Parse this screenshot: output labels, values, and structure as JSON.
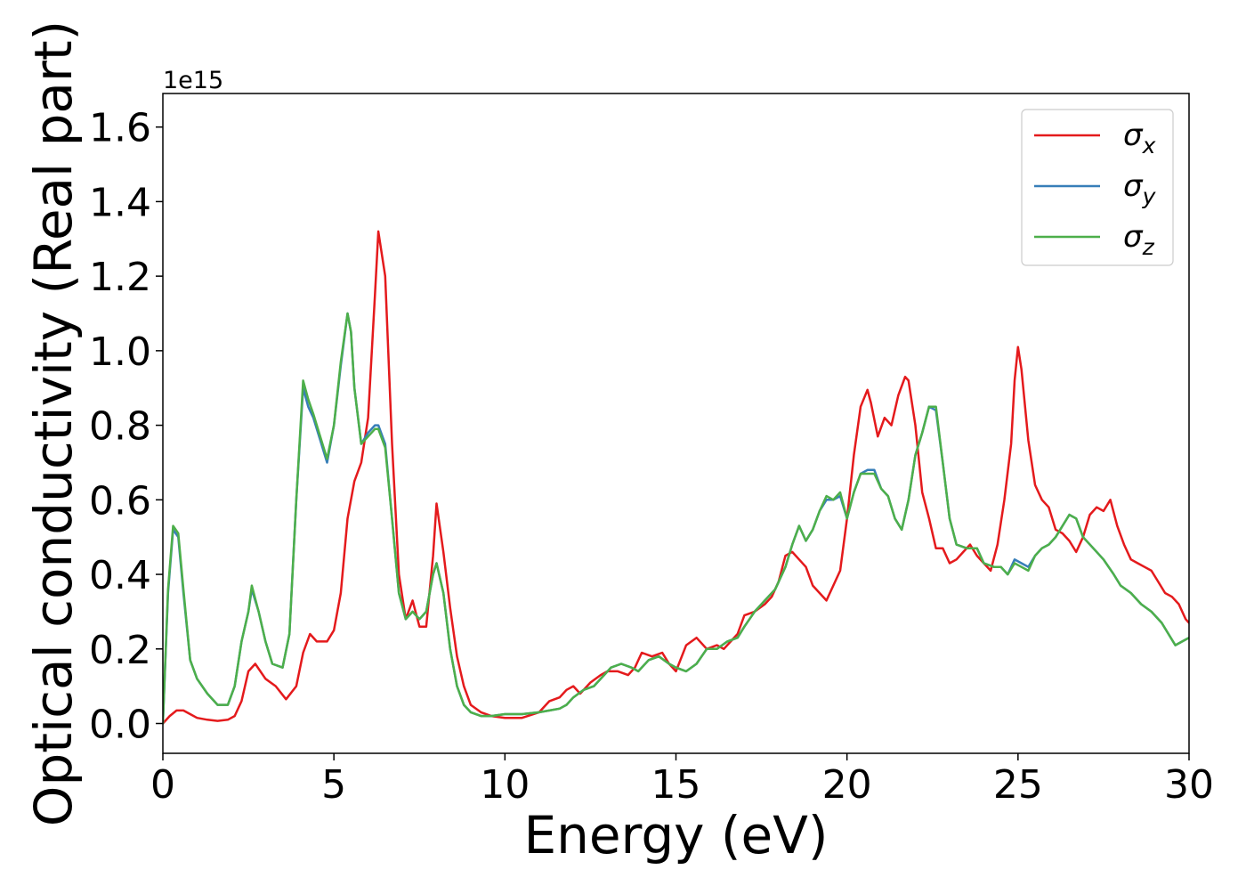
{
  "chart_data": {
    "type": "line",
    "title": "",
    "xlabel": "Energy (eV)",
    "ylabel": "Optical conductivity (Real part)",
    "offset_text": "1e15",
    "xlim": [
      0,
      30
    ],
    "ylim": [
      -0.08,
      1.69
    ],
    "x_ticks": [
      0,
      5,
      10,
      15,
      20,
      25,
      30
    ],
    "x_tick_labels": [
      "0",
      "5",
      "10",
      "15",
      "20",
      "25",
      "30"
    ],
    "y_ticks": [
      0.0,
      0.2,
      0.4,
      0.6,
      0.8,
      1.0,
      1.2,
      1.4,
      1.6
    ],
    "y_tick_labels": [
      "0.0",
      "0.2",
      "0.4",
      "0.6",
      "0.8",
      "1.0",
      "1.2",
      "1.4",
      "1.6"
    ],
    "grid": false,
    "legend_position": "top-right",
    "series": [
      {
        "name": "σx",
        "legend_base": "σ",
        "legend_sub": "x",
        "color": "#e41a1c",
        "x": [
          0,
          0.2,
          0.4,
          0.6,
          0.8,
          1.0,
          1.3,
          1.6,
          1.9,
          2.1,
          2.3,
          2.5,
          2.7,
          3.0,
          3.3,
          3.6,
          3.9,
          4.1,
          4.3,
          4.5,
          4.8,
          5.0,
          5.2,
          5.4,
          5.6,
          5.8,
          6.0,
          6.2,
          6.3,
          6.5,
          6.7,
          6.9,
          7.1,
          7.3,
          7.5,
          7.7,
          7.9,
          8.0,
          8.2,
          8.4,
          8.6,
          8.8,
          9.0,
          9.3,
          9.6,
          10.0,
          10.5,
          11.0,
          11.3,
          11.6,
          11.8,
          12.0,
          12.2,
          12.5,
          12.8,
          13.0,
          13.3,
          13.6,
          13.8,
          14.0,
          14.3,
          14.6,
          14.8,
          15.0,
          15.3,
          15.6,
          15.9,
          16.2,
          16.4,
          16.6,
          16.8,
          17.0,
          17.3,
          17.6,
          17.8,
          18.0,
          18.2,
          18.4,
          18.6,
          18.8,
          19.0,
          19.2,
          19.4,
          19.6,
          19.8,
          20.0,
          20.2,
          20.4,
          20.6,
          20.7,
          20.9,
          21.1,
          21.3,
          21.5,
          21.7,
          21.8,
          22.0,
          22.2,
          22.4,
          22.6,
          22.8,
          23.0,
          23.2,
          23.4,
          23.6,
          23.8,
          24.0,
          24.2,
          24.4,
          24.6,
          24.8,
          24.9,
          25.0,
          25.1,
          25.3,
          25.5,
          25.7,
          25.9,
          26.1,
          26.3,
          26.5,
          26.7,
          26.9,
          27.1,
          27.3,
          27.5,
          27.7,
          27.9,
          28.1,
          28.3,
          28.5,
          28.7,
          28.9,
          29.1,
          29.3,
          29.5,
          29.7,
          29.9,
          30.0
        ],
        "y": [
          0.0,
          0.02,
          0.035,
          0.035,
          0.025,
          0.015,
          0.01,
          0.007,
          0.01,
          0.02,
          0.06,
          0.14,
          0.16,
          0.12,
          0.1,
          0.065,
          0.1,
          0.19,
          0.24,
          0.22,
          0.22,
          0.25,
          0.35,
          0.55,
          0.65,
          0.7,
          0.82,
          1.15,
          1.32,
          1.2,
          0.75,
          0.4,
          0.28,
          0.33,
          0.26,
          0.26,
          0.45,
          0.59,
          0.46,
          0.31,
          0.18,
          0.1,
          0.05,
          0.03,
          0.02,
          0.015,
          0.015,
          0.03,
          0.06,
          0.07,
          0.09,
          0.1,
          0.08,
          0.11,
          0.13,
          0.14,
          0.14,
          0.13,
          0.15,
          0.19,
          0.18,
          0.19,
          0.16,
          0.14,
          0.21,
          0.23,
          0.2,
          0.21,
          0.2,
          0.22,
          0.24,
          0.29,
          0.3,
          0.32,
          0.34,
          0.38,
          0.45,
          0.46,
          0.44,
          0.42,
          0.37,
          0.35,
          0.33,
          0.37,
          0.41,
          0.55,
          0.72,
          0.85,
          0.895,
          0.86,
          0.77,
          0.82,
          0.8,
          0.88,
          0.93,
          0.92,
          0.8,
          0.62,
          0.55,
          0.47,
          0.47,
          0.43,
          0.44,
          0.46,
          0.48,
          0.45,
          0.43,
          0.41,
          0.48,
          0.6,
          0.75,
          0.92,
          1.01,
          0.95,
          0.76,
          0.64,
          0.6,
          0.58,
          0.52,
          0.51,
          0.49,
          0.46,
          0.5,
          0.56,
          0.58,
          0.57,
          0.6,
          0.53,
          0.48,
          0.44,
          0.43,
          0.42,
          0.41,
          0.38,
          0.35,
          0.34,
          0.32,
          0.28,
          0.27
        ]
      },
      {
        "name": "σy",
        "legend_base": "σ",
        "legend_sub": "y",
        "color": "#377eb8",
        "x": [
          0,
          0.15,
          0.3,
          0.45,
          0.6,
          0.8,
          1.0,
          1.3,
          1.6,
          1.9,
          2.1,
          2.3,
          2.5,
          2.6,
          2.8,
          3.0,
          3.2,
          3.5,
          3.7,
          3.9,
          4.1,
          4.25,
          4.4,
          4.6,
          4.8,
          5.0,
          5.2,
          5.4,
          5.5,
          5.6,
          5.8,
          6.0,
          6.2,
          6.3,
          6.5,
          6.7,
          6.9,
          7.1,
          7.3,
          7.5,
          7.7,
          7.9,
          8.0,
          8.2,
          8.4,
          8.6,
          8.8,
          9.0,
          9.3,
          9.6,
          10.0,
          10.5,
          11.0,
          11.3,
          11.6,
          11.8,
          12.0,
          12.3,
          12.6,
          12.9,
          13.1,
          13.4,
          13.7,
          13.9,
          14.2,
          14.5,
          14.8,
          15.0,
          15.3,
          15.6,
          15.9,
          16.2,
          16.5,
          16.8,
          17.0,
          17.3,
          17.6,
          17.9,
          18.2,
          18.4,
          18.6,
          18.8,
          19.0,
          19.2,
          19.4,
          19.6,
          19.8,
          20.0,
          20.2,
          20.4,
          20.6,
          20.8,
          21.0,
          21.2,
          21.4,
          21.6,
          21.8,
          22.0,
          22.2,
          22.4,
          22.6,
          22.8,
          23.0,
          23.2,
          23.5,
          23.8,
          24.0,
          24.3,
          24.5,
          24.7,
          24.9,
          25.1,
          25.3,
          25.5,
          25.7,
          25.9,
          26.1,
          26.3,
          26.5,
          26.7,
          26.9,
          27.2,
          27.5,
          27.8,
          28.0,
          28.3,
          28.6,
          28.9,
          29.2,
          29.4,
          29.6,
          29.8,
          30.0
        ],
        "y": [
          0.0,
          0.35,
          0.52,
          0.5,
          0.35,
          0.17,
          0.12,
          0.08,
          0.05,
          0.05,
          0.1,
          0.22,
          0.3,
          0.36,
          0.3,
          0.22,
          0.16,
          0.15,
          0.24,
          0.6,
          0.9,
          0.85,
          0.82,
          0.76,
          0.7,
          0.8,
          0.96,
          1.1,
          1.05,
          0.9,
          0.75,
          0.78,
          0.8,
          0.8,
          0.75,
          0.55,
          0.35,
          0.28,
          0.3,
          0.28,
          0.3,
          0.4,
          0.43,
          0.35,
          0.2,
          0.1,
          0.05,
          0.03,
          0.02,
          0.02,
          0.025,
          0.025,
          0.03,
          0.035,
          0.04,
          0.05,
          0.07,
          0.09,
          0.1,
          0.13,
          0.15,
          0.16,
          0.15,
          0.14,
          0.17,
          0.18,
          0.16,
          0.15,
          0.14,
          0.16,
          0.2,
          0.2,
          0.22,
          0.23,
          0.26,
          0.3,
          0.33,
          0.36,
          0.42,
          0.48,
          0.53,
          0.49,
          0.52,
          0.57,
          0.6,
          0.6,
          0.61,
          0.55,
          0.62,
          0.67,
          0.68,
          0.68,
          0.63,
          0.61,
          0.55,
          0.52,
          0.6,
          0.72,
          0.78,
          0.85,
          0.84,
          0.7,
          0.55,
          0.48,
          0.47,
          0.47,
          0.43,
          0.42,
          0.42,
          0.4,
          0.44,
          0.43,
          0.42,
          0.45,
          0.47,
          0.48,
          0.5,
          0.53,
          0.56,
          0.55,
          0.5,
          0.47,
          0.44,
          0.4,
          0.37,
          0.35,
          0.32,
          0.3,
          0.27,
          0.24,
          0.21,
          0.22,
          0.23
        ]
      },
      {
        "name": "σz",
        "legend_base": "σ",
        "legend_sub": "z",
        "color": "#4daf4a",
        "x": [
          0,
          0.15,
          0.3,
          0.45,
          0.6,
          0.8,
          1.0,
          1.3,
          1.6,
          1.9,
          2.1,
          2.3,
          2.5,
          2.6,
          2.8,
          3.0,
          3.2,
          3.5,
          3.7,
          3.9,
          4.1,
          4.25,
          4.4,
          4.6,
          4.8,
          5.0,
          5.2,
          5.4,
          5.5,
          5.6,
          5.8,
          6.0,
          6.2,
          6.3,
          6.5,
          6.7,
          6.9,
          7.1,
          7.3,
          7.5,
          7.7,
          7.9,
          8.0,
          8.2,
          8.4,
          8.6,
          8.8,
          9.0,
          9.3,
          9.6,
          10.0,
          10.5,
          11.0,
          11.3,
          11.6,
          11.8,
          12.0,
          12.3,
          12.6,
          12.9,
          13.1,
          13.4,
          13.7,
          13.9,
          14.2,
          14.5,
          14.8,
          15.0,
          15.3,
          15.6,
          15.9,
          16.2,
          16.5,
          16.8,
          17.0,
          17.3,
          17.6,
          17.9,
          18.2,
          18.4,
          18.6,
          18.8,
          19.0,
          19.2,
          19.4,
          19.6,
          19.8,
          20.0,
          20.2,
          20.4,
          20.6,
          20.8,
          21.0,
          21.2,
          21.4,
          21.6,
          21.8,
          22.0,
          22.2,
          22.4,
          22.6,
          22.8,
          23.0,
          23.2,
          23.5,
          23.8,
          24.0,
          24.3,
          24.5,
          24.7,
          24.9,
          25.1,
          25.3,
          25.5,
          25.7,
          25.9,
          26.1,
          26.3,
          26.5,
          26.7,
          26.9,
          27.2,
          27.5,
          27.8,
          28.0,
          28.3,
          28.6,
          28.9,
          29.2,
          29.4,
          29.6,
          29.8,
          30.0
        ],
        "y": [
          0.0,
          0.36,
          0.53,
          0.51,
          0.36,
          0.17,
          0.12,
          0.08,
          0.05,
          0.05,
          0.1,
          0.22,
          0.3,
          0.37,
          0.3,
          0.22,
          0.16,
          0.15,
          0.24,
          0.6,
          0.92,
          0.87,
          0.83,
          0.77,
          0.71,
          0.8,
          0.97,
          1.1,
          1.05,
          0.9,
          0.75,
          0.77,
          0.79,
          0.79,
          0.74,
          0.55,
          0.35,
          0.28,
          0.3,
          0.28,
          0.3,
          0.4,
          0.43,
          0.35,
          0.2,
          0.1,
          0.05,
          0.03,
          0.02,
          0.02,
          0.025,
          0.025,
          0.03,
          0.035,
          0.04,
          0.05,
          0.07,
          0.09,
          0.1,
          0.13,
          0.15,
          0.16,
          0.15,
          0.14,
          0.17,
          0.18,
          0.16,
          0.15,
          0.14,
          0.16,
          0.2,
          0.2,
          0.22,
          0.23,
          0.26,
          0.3,
          0.33,
          0.36,
          0.42,
          0.48,
          0.53,
          0.49,
          0.52,
          0.57,
          0.61,
          0.6,
          0.62,
          0.55,
          0.62,
          0.67,
          0.67,
          0.67,
          0.63,
          0.61,
          0.55,
          0.52,
          0.6,
          0.72,
          0.78,
          0.85,
          0.85,
          0.7,
          0.55,
          0.48,
          0.47,
          0.47,
          0.43,
          0.42,
          0.42,
          0.4,
          0.43,
          0.42,
          0.41,
          0.45,
          0.47,
          0.48,
          0.5,
          0.53,
          0.56,
          0.55,
          0.5,
          0.47,
          0.44,
          0.4,
          0.37,
          0.35,
          0.32,
          0.3,
          0.27,
          0.24,
          0.21,
          0.22,
          0.23
        ]
      }
    ]
  }
}
